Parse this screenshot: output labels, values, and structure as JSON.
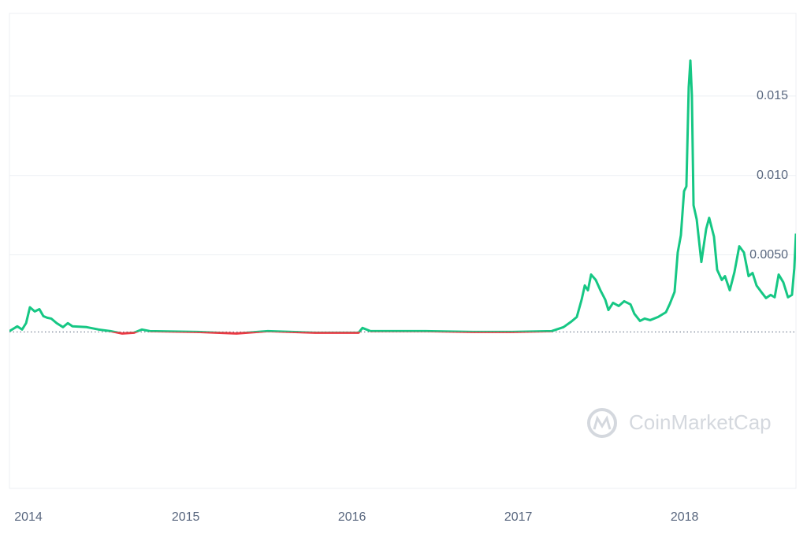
{
  "chart_data": {
    "type": "line",
    "watermark": "CoinMarketCap",
    "x": [
      2013.94,
      2013.987,
      2014.016,
      2014.04,
      2014.063,
      2014.092,
      2014.12,
      2014.144,
      2014.167,
      2014.191,
      2014.224,
      2014.262,
      2014.291,
      2014.319,
      2014.404,
      2014.476,
      2014.547,
      2014.618,
      2014.689,
      2014.736,
      2014.784,
      2015.068,
      2015.305,
      2015.494,
      2015.779,
      2016.04,
      2016.063,
      2016.111,
      2016.442,
      2016.727,
      2016.964,
      2017.201,
      2017.272,
      2017.319,
      2017.352,
      2017.381,
      2017.4,
      2017.419,
      2017.438,
      2017.466,
      2017.494,
      2017.523,
      2017.542,
      2017.57,
      2017.604,
      2017.637,
      2017.675,
      2017.698,
      2017.732,
      2017.76,
      2017.793,
      2017.841,
      2017.888,
      2017.912,
      2017.94,
      2017.959,
      2017.978,
      2017.997,
      2018.011,
      2018.025,
      2018.035,
      2018.044,
      2018.054,
      2018.073,
      2018.101,
      2018.13,
      2018.148,
      2018.177,
      2018.196,
      2018.224,
      2018.243,
      2018.272,
      2018.3,
      2018.329,
      2018.357,
      2018.385,
      2018.409,
      2018.433,
      2018.461,
      2018.49,
      2018.518,
      2018.542,
      2018.566,
      2018.594,
      2018.622,
      2018.646,
      2018.66,
      2018.67
    ],
    "values": [
      0.0002,
      0.0005,
      0.0003,
      0.0007,
      0.0017,
      0.00144,
      0.00158,
      0.00114,
      0.00104,
      0.00099,
      0.0007,
      0.00045,
      0.0007,
      0.0005,
      0.00045,
      0.0003,
      0.0002,
      5e-05,
      0.0001,
      0.0003,
      0.0002,
      0.00015,
      5e-05,
      0.0002,
      0.0001,
      0.0001,
      0.0004,
      0.0002,
      0.0002,
      0.00015,
      0.00015,
      0.0002,
      0.00045,
      0.0008,
      0.00109,
      0.00218,
      0.00307,
      0.00277,
      0.00376,
      0.00342,
      0.00277,
      0.00218,
      0.00153,
      0.00198,
      0.00178,
      0.00208,
      0.00188,
      0.00129,
      0.00084,
      0.00099,
      0.00089,
      0.00109,
      0.00139,
      0.00193,
      0.00267,
      0.00515,
      0.00624,
      0.00901,
      0.00931,
      0.01554,
      0.01723,
      0.01505,
      0.00812,
      0.00723,
      0.00455,
      0.00663,
      0.00733,
      0.00614,
      0.00406,
      0.00342,
      0.00366,
      0.00277,
      0.00391,
      0.00554,
      0.00515,
      0.00366,
      0.00386,
      0.00307,
      0.00267,
      0.00228,
      0.00248,
      0.00233,
      0.00376,
      0.00327,
      0.00233,
      0.00248,
      0.00416,
      0.00634
    ],
    "color": "#16c784",
    "down_color": "#ea3943",
    "baseline": 0.00015,
    "xlim": [
      2013.94,
      2018.67
    ],
    "xticks": [
      2014,
      2015,
      2016,
      2017,
      2018
    ],
    "ylim": [
      -0.0097,
      0.0202
    ],
    "yticks": [
      0.015,
      {
        "value": 0.01,
        "label": "0.010"
      },
      {
        "value": 0.005,
        "label": "0.0050"
      }
    ],
    "grid": true
  }
}
